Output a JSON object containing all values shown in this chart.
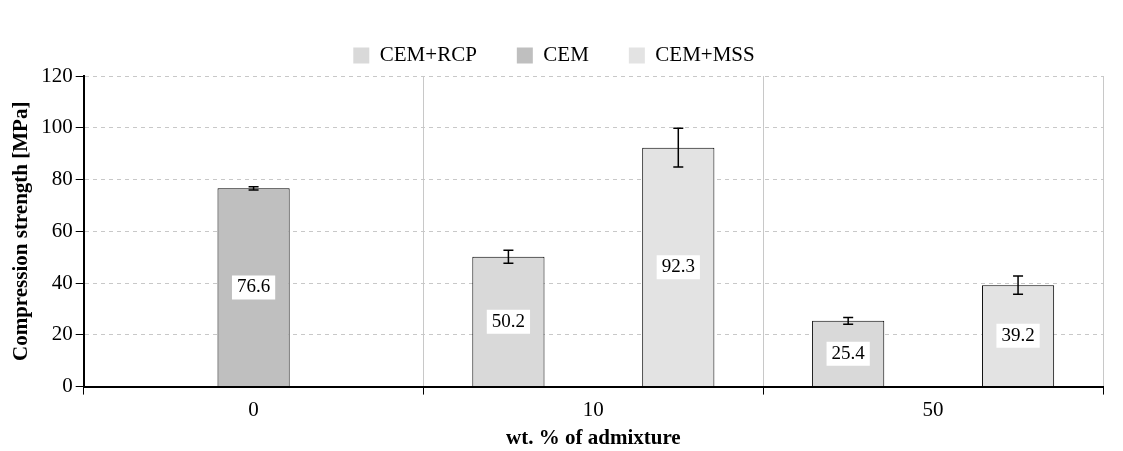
{
  "chart_data": {
    "type": "bar",
    "xlabel": "wt. % of admixture",
    "ylabel": "Compression strength [MPa]",
    "categories": [
      "0",
      "10",
      "50"
    ],
    "series": [
      {
        "name": "CEM+RCP",
        "color": "#d9d9d9",
        "values": [
          null,
          50.2,
          25.4
        ],
        "errors": [
          null,
          2.5,
          1.3
        ]
      },
      {
        "name": "CEM",
        "color": "#bfbfbf",
        "values": [
          76.6,
          null,
          null
        ],
        "errors": [
          0.6,
          null,
          null
        ]
      },
      {
        "name": "CEM+MSS",
        "color": "#e3e3e3",
        "values": [
          null,
          92.3,
          39.2
        ],
        "errors": [
          null,
          7.5,
          3.5
        ]
      }
    ],
    "ylim": [
      0,
      120
    ],
    "yticks": [
      0,
      20,
      40,
      60,
      80,
      100,
      120
    ],
    "grid": true,
    "legend": "top",
    "data_labels": true
  }
}
